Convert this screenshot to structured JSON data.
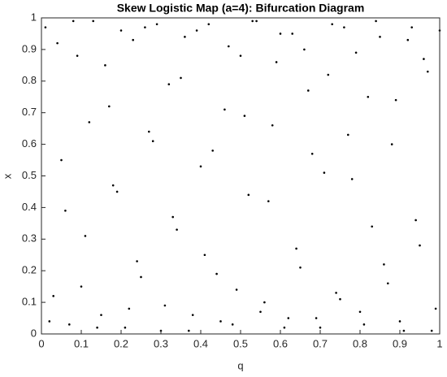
{
  "chart_data": {
    "type": "scatter",
    "title": "Skew Logistic Map (a=4): Bifurcation Diagram",
    "xlabel": "q",
    "ylabel": "x",
    "color": "#000000",
    "xlim": [
      0,
      1
    ],
    "ylim": [
      0,
      1
    ],
    "xticks": [
      0,
      0.1,
      0.2,
      0.3,
      0.4,
      0.5,
      0.6,
      0.7,
      0.8,
      0.9,
      1
    ],
    "yticks": [
      0,
      0.1,
      0.2,
      0.3,
      0.4,
      0.5,
      0.6,
      0.7,
      0.8,
      0.9,
      1
    ],
    "x": [
      0.01,
      0.03,
      0.05,
      0.07,
      0.09,
      0.11,
      0.13,
      0.15,
      0.17,
      0.19,
      0.21,
      0.23,
      0.25,
      0.27,
      0.29,
      0.31,
      0.33,
      0.35,
      0.37,
      0.39,
      0.41,
      0.43,
      0.45,
      0.47,
      0.49,
      0.51,
      0.53,
      0.55,
      0.57,
      0.59,
      0.61,
      0.63,
      0.65,
      0.67,
      0.69,
      0.71,
      0.73,
      0.75,
      0.77,
      0.79,
      0.81,
      0.83,
      0.85,
      0.87,
      0.89,
      0.91,
      0.93,
      0.95,
      0.97,
      0.99,
      0.02,
      0.04,
      0.06,
      0.08,
      0.1,
      0.12,
      0.14,
      0.16,
      0.18,
      0.2,
      0.22,
      0.24,
      0.26,
      0.28,
      0.3,
      0.32,
      0.34,
      0.36,
      0.38,
      0.4,
      0.42,
      0.44,
      0.46,
      0.48,
      0.5,
      0.52,
      0.54,
      0.56,
      0.58,
      0.6,
      0.62,
      0.64,
      0.66,
      0.68,
      0.7,
      0.72,
      0.74,
      0.76,
      0.78,
      0.8,
      0.82,
      0.84,
      0.86,
      0.88,
      0.9,
      0.92,
      0.94,
      0.96,
      0.98,
      1
    ],
    "values": [
      0.97,
      0.12,
      0.55,
      0.03,
      0.88,
      0.31,
      0.99,
      0.06,
      0.72,
      0.45,
      0.02,
      0.93,
      0.18,
      0.64,
      0.98,
      0.09,
      0.37,
      0.81,
      0.01,
      0.96,
      0.25,
      0.58,
      0.04,
      0.91,
      0.14,
      0.69,
      0.99,
      0.07,
      0.42,
      0.86,
      0.02,
      0.95,
      0.21,
      0.77,
      0.05,
      0.51,
      0.98,
      0.11,
      0.63,
      0.89,
      0.03,
      0.34,
      0.94,
      0.16,
      0.74,
      0.01,
      0.97,
      0.28,
      0.83,
      0.08,
      0.04,
      0.92,
      0.39,
      0.99,
      0.15,
      0.67,
      0.02,
      0.85,
      0.47,
      0.96,
      0.08,
      0.23,
      0.97,
      0.61,
      0.01,
      0.79,
      0.33,
      0.94,
      0.06,
      0.53,
      0.98,
      0.19,
      0.71,
      0.03,
      0.88,
      0.44,
      0.99,
      0.1,
      0.66,
      0.95,
      0.05,
      0.27,
      0.9,
      0.57,
      0.02,
      0.82,
      0.13,
      0.97,
      0.49,
      0.07,
      0.75,
      0.99,
      0.22,
      0.6,
      0.04,
      0.93,
      0.36,
      0.87,
      0.01,
      0.96
    ]
  }
}
